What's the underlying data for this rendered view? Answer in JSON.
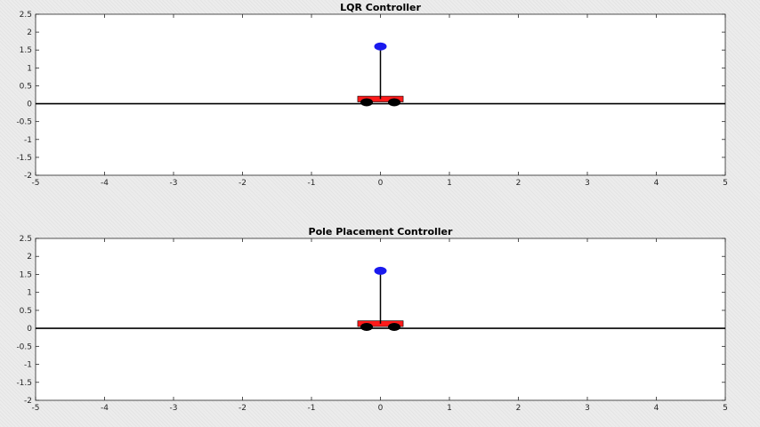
{
  "chart_data": [
    {
      "type": "scatter",
      "title": "LQR Controller",
      "xlabel": "",
      "ylabel": "",
      "xlim": [
        -5,
        5
      ],
      "ylim": [
        -2,
        2.5
      ],
      "xticks": [
        "-5",
        "-4",
        "-3",
        "-2",
        "-1",
        "0",
        "1",
        "2",
        "3",
        "4",
        "5"
      ],
      "yticks": [
        "2.5",
        "2",
        "1.5",
        "1",
        "0.5",
        "0",
        "-0.5",
        "-1",
        "-1.5",
        "-2"
      ],
      "grid": false,
      "legend": "none",
      "ground_y": 0,
      "cart": {
        "x": 0,
        "left": -0.33,
        "right": 0.33,
        "bottom": 0.05,
        "top": 0.21,
        "wheels_x": [
          -0.2,
          0.2
        ],
        "wheel_y": 0.04
      },
      "pendulum": {
        "base_x": 0,
        "base_y": 0.13,
        "tip_x": 0,
        "tip_y": 1.6
      },
      "colors": {
        "cart": "#ff1a1a",
        "bob": "#1a1aee",
        "wheels": "#000000",
        "rod": "#000000",
        "ground": "#000000"
      }
    },
    {
      "type": "scatter",
      "title": "Pole Placement Controller",
      "xlabel": "",
      "ylabel": "",
      "xlim": [
        -5,
        5
      ],
      "ylim": [
        -2,
        2.5
      ],
      "xticks": [
        "-5",
        "-4",
        "-3",
        "-2",
        "-1",
        "0",
        "1",
        "2",
        "3",
        "4",
        "5"
      ],
      "yticks": [
        "2.5",
        "2",
        "1.5",
        "1",
        "0.5",
        "0",
        "-0.5",
        "-1",
        "-1.5",
        "-2"
      ],
      "grid": false,
      "legend": "none",
      "ground_y": 0,
      "cart": {
        "x": 0,
        "left": -0.33,
        "right": 0.33,
        "bottom": 0.05,
        "top": 0.21,
        "wheels_x": [
          -0.2,
          0.2
        ],
        "wheel_y": 0.04
      },
      "pendulum": {
        "base_x": 0,
        "base_y": 0.13,
        "tip_x": 0,
        "tip_y": 1.6
      },
      "colors": {
        "cart": "#ff1a1a",
        "bob": "#1a1aee",
        "wheels": "#000000",
        "rod": "#000000",
        "ground": "#000000"
      }
    }
  ]
}
